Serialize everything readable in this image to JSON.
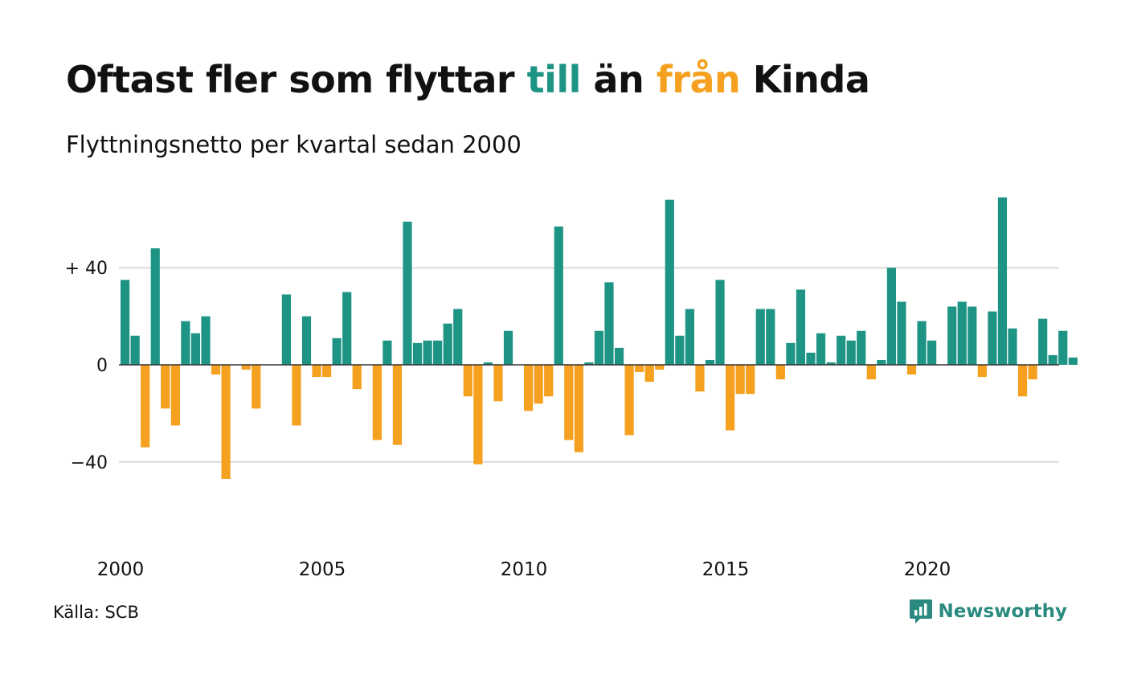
{
  "header": {
    "title_part1": "Oftast fler som flyttar ",
    "title_till": "till",
    "title_part2": " än ",
    "title_fran": "från",
    "title_part3": " Kinda",
    "subtitle": "Flyttningsnetto per kvartal sedan 2000"
  },
  "footer": {
    "source": "Källa: SCB",
    "brand": "Newsworthy",
    "brand_icon": "newsworthy-logo-icon"
  },
  "colors": {
    "positive": "#1e9485",
    "negative": "#f5a01e",
    "grid": "#dcdcdc",
    "zero_line": "#333333",
    "text": "#111111",
    "brand": "#2a8a7f"
  },
  "chart_data": {
    "type": "bar",
    "title": "Oftast fler som flyttar till än från Kinda",
    "subtitle": "Flyttningsnetto per kvartal sedan 2000",
    "xlabel": "",
    "ylabel": "",
    "ylim": [
      -65,
      70
    ],
    "yticks": [
      {
        "value": 40,
        "label": "+ 40"
      },
      {
        "value": 0,
        "label": "0"
      },
      {
        "value": -40,
        "label": "−40"
      }
    ],
    "xtick_labels": [
      "2000",
      "2005",
      "2010",
      "2015",
      "2020"
    ],
    "grid": true,
    "start_year": 2000,
    "values": [
      35,
      12,
      -34,
      48,
      -18,
      -25,
      18,
      13,
      20,
      -4,
      -47,
      0,
      -2,
      -18,
      0,
      0,
      29,
      -25,
      20,
      -5,
      -5,
      11,
      30,
      -10,
      0,
      -31,
      10,
      -33,
      59,
      9,
      10,
      10,
      17,
      23,
      -13,
      -41,
      1,
      -15,
      14,
      0,
      -19,
      -16,
      -13,
      57,
      -31,
      -36,
      1,
      14,
      34,
      7,
      -29,
      -3,
      -7,
      -2,
      68,
      12,
      23,
      -11,
      2,
      35,
      -27,
      -12,
      -12,
      23,
      23,
      -6,
      9,
      31,
      5,
      13,
      1,
      12,
      10,
      14,
      -6,
      2,
      40,
      26,
      -4,
      18,
      10,
      0,
      24,
      26,
      24,
      -5,
      22,
      69,
      15,
      -13,
      -6,
      19,
      4,
      14,
      3
    ]
  }
}
